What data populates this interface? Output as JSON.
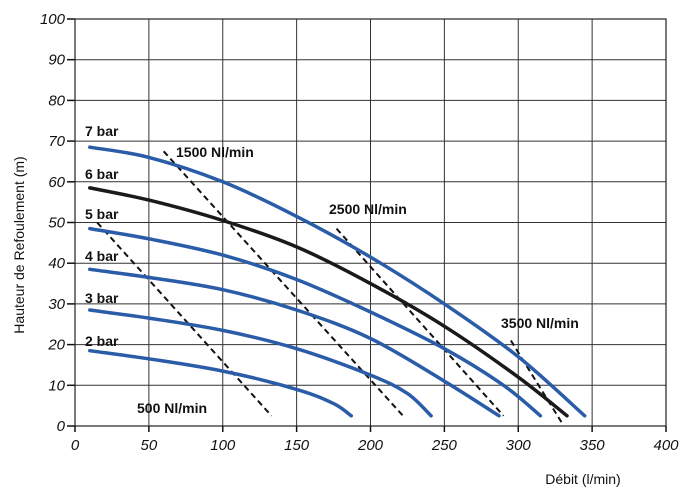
{
  "chart_data": {
    "type": "line",
    "title": "",
    "xlabel": "Débit (l/min)",
    "ylabel": "Hauteur de Refoulement (m)",
    "xlim": [
      0,
      400
    ],
    "ylim": [
      0,
      100
    ],
    "x_ticks": [
      "0",
      "50",
      "100",
      "150",
      "200",
      "250",
      "300",
      "350",
      "400"
    ],
    "y_ticks": [
      "0",
      "10",
      "20",
      "30",
      "40",
      "50",
      "60",
      "70",
      "80",
      "90",
      "100"
    ],
    "grid": true,
    "colors": {
      "pressure_curve": "#2a5ca8",
      "highlight_curve": "#1a1a1a",
      "air_line": "#111111"
    },
    "series": [
      {
        "name": "7 bar",
        "style": "blue",
        "points": [
          [
            10,
            68.5
          ],
          [
            50,
            66
          ],
          [
            100,
            60
          ],
          [
            150,
            51.5
          ],
          [
            200,
            41.5
          ],
          [
            250,
            30
          ],
          [
            300,
            17
          ],
          [
            345,
            2.5
          ]
        ]
      },
      {
        "name": "6 bar",
        "style": "black",
        "points": [
          [
            10,
            58.5
          ],
          [
            50,
            55.5
          ],
          [
            100,
            50.5
          ],
          [
            150,
            44
          ],
          [
            200,
            35
          ],
          [
            250,
            24.5
          ],
          [
            300,
            12
          ],
          [
            333,
            2.5
          ]
        ]
      },
      {
        "name": "5 bar",
        "style": "blue",
        "points": [
          [
            10,
            48.5
          ],
          [
            50,
            46
          ],
          [
            100,
            42
          ],
          [
            150,
            36
          ],
          [
            200,
            28
          ],
          [
            250,
            19
          ],
          [
            290,
            10
          ],
          [
            315,
            2.5
          ]
        ]
      },
      {
        "name": "4 bar",
        "style": "blue",
        "points": [
          [
            10,
            38.5
          ],
          [
            50,
            36.5
          ],
          [
            100,
            33.5
          ],
          [
            150,
            28.5
          ],
          [
            200,
            21.5
          ],
          [
            250,
            11
          ],
          [
            287,
            2.5
          ]
        ]
      },
      {
        "name": "3 bar",
        "style": "blue",
        "points": [
          [
            10,
            28.5
          ],
          [
            50,
            26.5
          ],
          [
            100,
            23.5
          ],
          [
            150,
            19
          ],
          [
            200,
            12.5
          ],
          [
            225,
            8
          ],
          [
            241,
            2.5
          ]
        ]
      },
      {
        "name": "2 bar",
        "style": "blue",
        "points": [
          [
            10,
            18.5
          ],
          [
            50,
            16.5
          ],
          [
            100,
            13.5
          ],
          [
            150,
            9
          ],
          [
            175,
            5.5
          ],
          [
            187,
            2.5
          ]
        ]
      }
    ],
    "air_consumption_lines": [
      {
        "name": "500 Nl/min",
        "points": [
          [
            15,
            50
          ],
          [
            133,
            2.5
          ]
        ]
      },
      {
        "name": "1500 Nl/min",
        "points": [
          [
            60,
            67.5
          ],
          [
            222,
            2.5
          ]
        ]
      },
      {
        "name": "2500 Nl/min",
        "points": [
          [
            177,
            48.5
          ],
          [
            290,
            2.5
          ]
        ]
      },
      {
        "name": "3500 Nl/min",
        "points": [
          [
            295,
            21
          ],
          [
            330,
            0.5
          ]
        ]
      }
    ],
    "curve_labels": {
      "7 bar": "7 bar",
      "6 bar": "6 bar",
      "5 bar": "5 bar",
      "4 bar": "4 bar",
      "3 bar": "3 bar",
      "2 bar": "2 bar",
      "500 Nl/min": "500 Nl/min",
      "1500 Nl/min": "1500 Nl/min",
      "2500 Nl/min": "2500 Nl/min",
      "3500 Nl/min": "3500 Nl/min"
    }
  }
}
